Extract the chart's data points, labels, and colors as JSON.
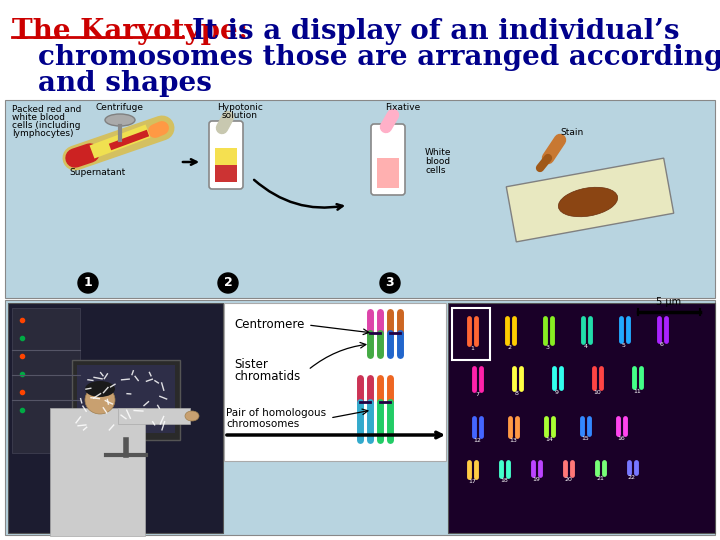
{
  "bg_color": "white",
  "title_red": "The Karyotype:",
  "title_rest_line1": "It is a display of an individual’s",
  "title_line2": "chromosomes those are arranged according to size",
  "title_line3": "and shapes",
  "red_color": "#cc0000",
  "blue_color": "#00008b",
  "panel_bg": "#b8d4e0",
  "font_size": 20,
  "upper_panel": [
    5,
    100,
    710,
    198
  ],
  "lower_panel": [
    5,
    300,
    710,
    235
  ]
}
